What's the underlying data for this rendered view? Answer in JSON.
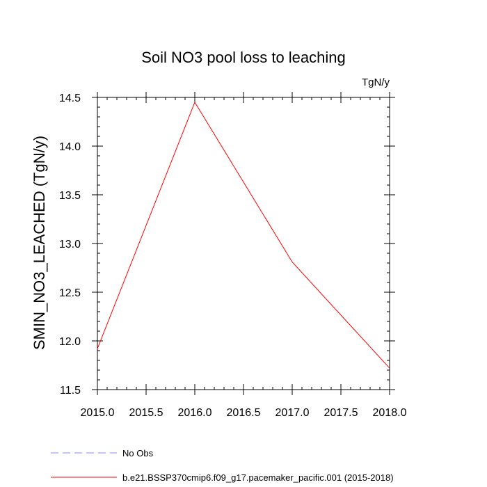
{
  "chart_data": {
    "type": "line",
    "title": "Soil NO3 pool loss to leaching",
    "units_label": "TgN/y",
    "ylabel": "SMIN_NO3_LEACHED  (TgN/y)",
    "xlabel": "",
    "xlim": [
      2015.0,
      2018.0
    ],
    "ylim": [
      11.5,
      14.5
    ],
    "x_ticks": [
      "2015.0",
      "2015.5",
      "2016.0",
      "2016.5",
      "2017.0",
      "2017.5",
      "2018.0"
    ],
    "y_ticks": [
      "11.5",
      "12.0",
      "12.5",
      "13.0",
      "13.5",
      "14.0",
      "14.5"
    ],
    "grid": false,
    "legend_position": "bottom",
    "series": [
      {
        "name": "b.e21.BSSP370cmip6.f09_g17.pacemaker_pacific.001 (2015-2018)",
        "color": "#ff0000",
        "dash": "solid",
        "x": [
          2015.0,
          2016.0,
          2017.0,
          2018.0
        ],
        "y": [
          11.92,
          14.45,
          12.81,
          11.72
        ]
      }
    ],
    "legend": [
      {
        "label": "No Obs",
        "color": "#8888ff",
        "dash": "dashed"
      },
      {
        "label": "b.e21.BSSP370cmip6.f09_g17.pacemaker_pacific.001 (2015-2018)",
        "color": "#ff0000",
        "dash": "solid"
      }
    ]
  }
}
